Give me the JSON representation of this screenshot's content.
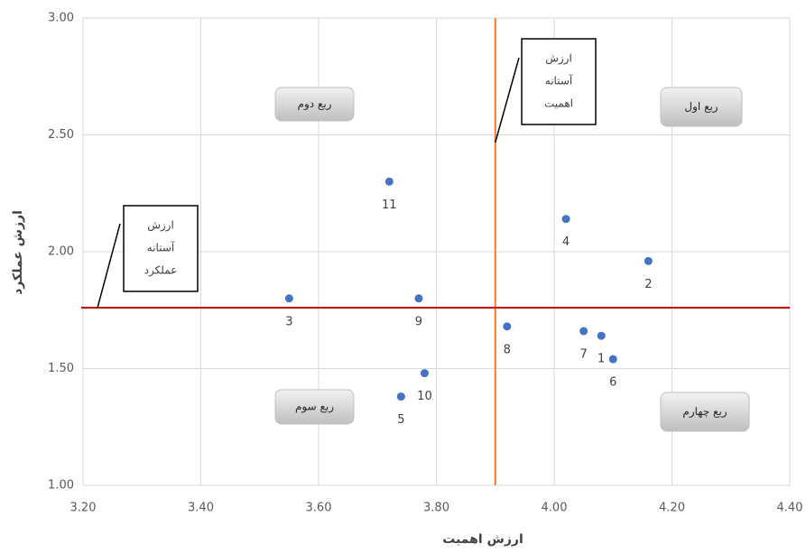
{
  "chart_data": {
    "type": "scatter",
    "x_label": "ارزش اهمیت",
    "y_label": "ارزش عملکرد",
    "x": [
      3.72,
      4.02,
      4.16,
      3.55,
      3.77,
      3.92,
      4.05,
      4.08,
      4.1,
      3.78,
      3.74
    ],
    "values": [
      2.3,
      2.14,
      1.96,
      1.8,
      1.8,
      1.68,
      1.66,
      1.64,
      1.54,
      1.48,
      1.38
    ],
    "point_labels": [
      "11",
      "4",
      "2",
      "3",
      "9",
      "8",
      "7",
      "1",
      "6",
      "10",
      "5"
    ],
    "color": "#4472c4",
    "xlim": [
      3.2,
      4.4
    ],
    "xticks": [
      {
        "value": 3.2,
        "label": "3.20"
      },
      {
        "value": 3.4,
        "label": "3.40"
      },
      {
        "value": 3.6,
        "label": "3.60"
      },
      {
        "value": 3.8,
        "label": "3.80"
      },
      {
        "value": 4.0,
        "label": "4.00"
      },
      {
        "value": 4.2,
        "label": "4.20"
      },
      {
        "value": 4.4,
        "label": "4.40"
      }
    ],
    "ylim": [
      1.0,
      3.0
    ],
    "yticks": [
      {
        "value": 1.0,
        "label": "1.00"
      },
      {
        "value": 1.5,
        "label": "1.50"
      },
      {
        "value": 2.0,
        "label": "2.00"
      },
      {
        "value": 2.5,
        "label": "2.50"
      },
      {
        "value": 3.0,
        "label": "3.00"
      }
    ],
    "grid": true,
    "threshold_x": {
      "value": 3.9,
      "color": "#ed7d31",
      "label": [
        "ارزش",
        "آستانه",
        "اهمیت"
      ]
    },
    "threshold_y": {
      "value": 1.76,
      "color": "#c00000",
      "label": [
        "ارزش",
        "آستانه",
        "عملکرد"
      ]
    },
    "quadrants": [
      "ربع اول",
      "ربع دوم",
      "ربع سوم",
      "ربع چهارم"
    ]
  }
}
